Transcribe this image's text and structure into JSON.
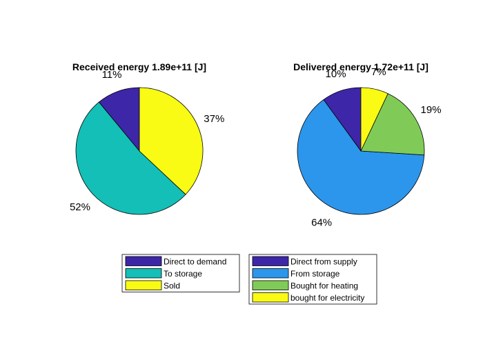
{
  "chart_data": [
    {
      "type": "pie",
      "title": "Received energy 1.89e+11 [J]",
      "slices": [
        {
          "label": "Direct to demand",
          "value": 11,
          "percent_label": "11%",
          "color": "#3e26a8"
        },
        {
          "label": "To storage",
          "value": 52,
          "percent_label": "52%",
          "color": "#13bfb6"
        },
        {
          "label": "Sold",
          "value": 37,
          "percent_label": "37%",
          "color": "#f9fb15"
        }
      ],
      "legend_placement": "bottom"
    },
    {
      "type": "pie",
      "title": "Delivered energy 1.72e+11 [J]",
      "slices": [
        {
          "label": "Direct from supply",
          "value": 10,
          "percent_label": "10%",
          "color": "#3e26a8"
        },
        {
          "label": "From storage",
          "value": 64,
          "percent_label": "64%",
          "color": "#2c96ec"
        },
        {
          "label": "Bought for heating",
          "value": 19,
          "percent_label": "19%",
          "color": "#80cb58"
        },
        {
          "label": "bought for electricity",
          "value": 7,
          "percent_label": "7%",
          "color": "#f9fb15"
        }
      ],
      "legend_placement": "bottom"
    }
  ]
}
